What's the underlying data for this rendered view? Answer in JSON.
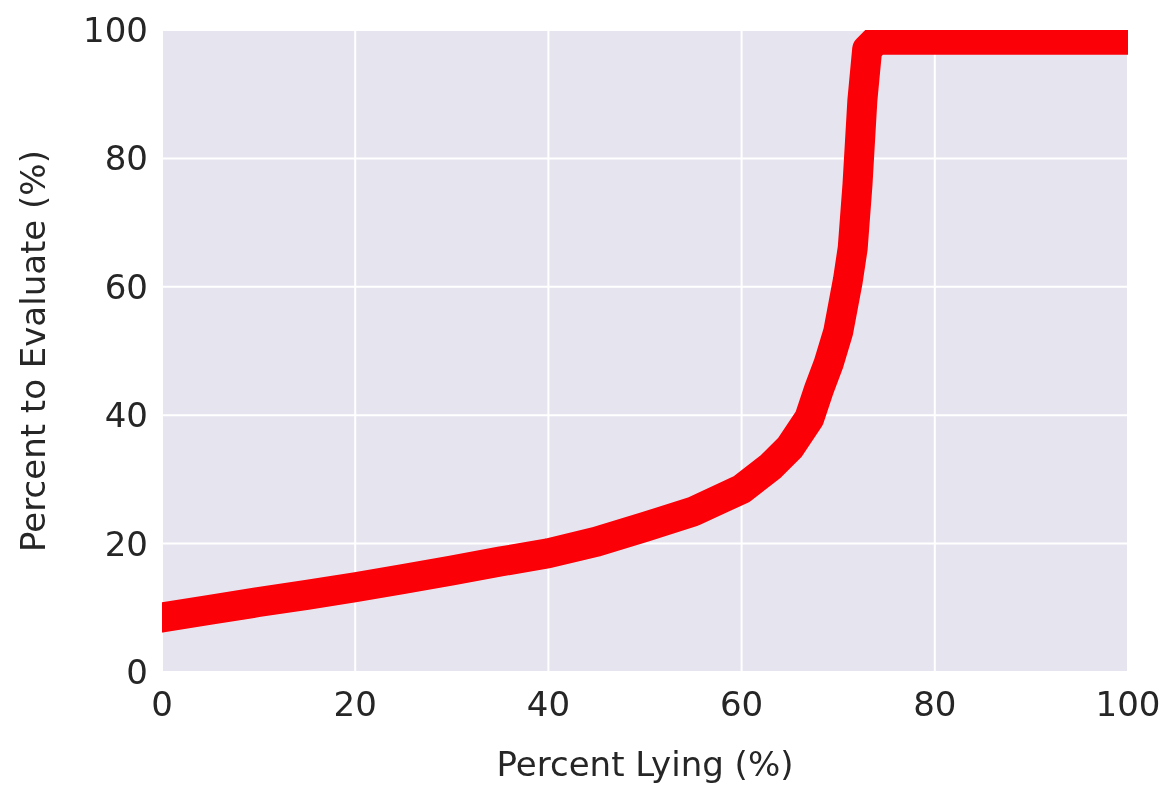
{
  "chart_data": {
    "type": "line",
    "xlabel": "Percent Lying (%)",
    "ylabel": "Percent to Evaluate (%)",
    "x": [
      0,
      5,
      10,
      15,
      20,
      25,
      30,
      35,
      40,
      45,
      50,
      55,
      60,
      63,
      65,
      67,
      68,
      69,
      70,
      71,
      71.5,
      72,
      72.5,
      73,
      74,
      75,
      80,
      90,
      100
    ],
    "series": [
      {
        "color": "#fb0007",
        "values": [
          8.5,
          9.7,
          10.9,
          12,
          13.2,
          14.5,
          15.8,
          17.2,
          18.5,
          20.3,
          22.6,
          25,
          28.5,
          32,
          35,
          39.5,
          44,
          48,
          53,
          61,
          66,
          76,
          89,
          97,
          98.5,
          98.5,
          98.5,
          98.5,
          98.5
        ]
      }
    ],
    "xlim": [
      0,
      100
    ],
    "ylim": [
      0,
      100
    ],
    "xticks": [
      0,
      20,
      40,
      60,
      80,
      100
    ],
    "yticks": [
      0,
      20,
      40,
      60,
      80,
      100
    ],
    "grid": true,
    "line_style": "solid"
  }
}
